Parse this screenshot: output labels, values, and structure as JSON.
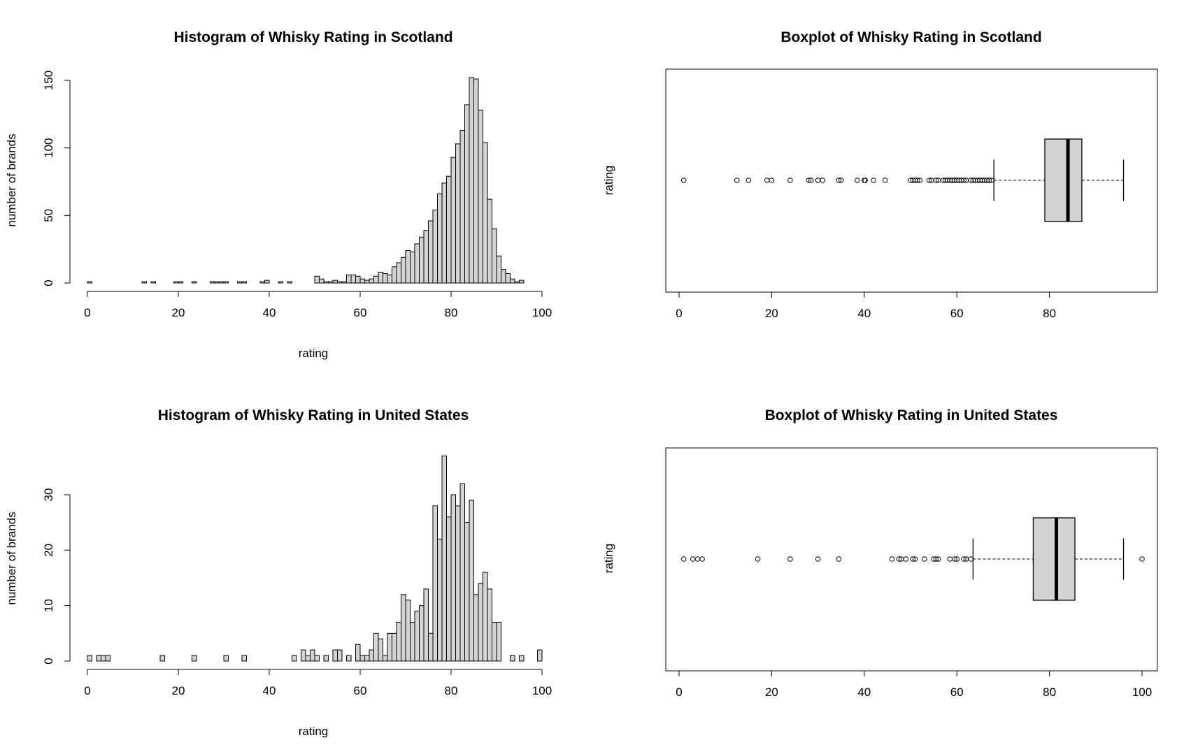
{
  "chart_data": [
    {
      "type": "bar",
      "chart": "histogram",
      "title": "Histogram of Whisky Rating in Scotland",
      "xlabel": "rating",
      "ylabel": "number of brands",
      "xlim": [
        0,
        100
      ],
      "ylim": [
        0,
        150
      ],
      "xticks": [
        "0",
        "20",
        "40",
        "60",
        "80",
        "100"
      ],
      "yticks": [
        "0",
        "50",
        "100",
        "150"
      ],
      "bin_width": 1,
      "bins_start": [
        0,
        1,
        2,
        3,
        4,
        5,
        6,
        7,
        8,
        9,
        10,
        11,
        12,
        13,
        14,
        15,
        16,
        17,
        18,
        19,
        20,
        21,
        22,
        23,
        24,
        25,
        26,
        27,
        28,
        29,
        30,
        31,
        32,
        33,
        34,
        35,
        36,
        37,
        38,
        39,
        40,
        41,
        42,
        43,
        44,
        45,
        46,
        47,
        48,
        49,
        50,
        51,
        52,
        53,
        54,
        55,
        56,
        57,
        58,
        59,
        60,
        61,
        62,
        63,
        64,
        65,
        66,
        67,
        68,
        69,
        70,
        71,
        72,
        73,
        74,
        75,
        76,
        77,
        78,
        79,
        80,
        81,
        82,
        83,
        84,
        85,
        86,
        87,
        88,
        89,
        90,
        91,
        92,
        93,
        94,
        95,
        96,
        97,
        98,
        99
      ],
      "values": [
        1,
        0,
        0,
        0,
        0,
        0,
        0,
        0,
        0,
        0,
        0,
        0,
        1,
        0,
        1,
        0,
        0,
        0,
        0,
        1,
        1,
        0,
        0,
        1,
        0,
        0,
        0,
        1,
        1,
        1,
        1,
        0,
        0,
        1,
        1,
        0,
        0,
        0,
        1,
        2,
        0,
        0,
        1,
        0,
        1,
        0,
        0,
        0,
        0,
        0,
        5,
        3,
        1,
        1,
        2,
        1,
        1,
        6,
        6,
        5,
        3,
        2,
        3,
        5,
        8,
        7,
        6,
        12,
        15,
        19,
        24,
        23,
        29,
        34,
        39,
        46,
        54,
        66,
        74,
        79,
        93,
        103,
        113,
        132,
        152,
        151,
        128,
        104,
        62,
        40,
        20,
        10,
        7,
        3,
        1,
        2,
        0,
        0,
        0,
        0
      ]
    },
    {
      "type": "boxplot",
      "title": "Boxplot of Whisky Rating in Scotland",
      "ylabel": "rating",
      "xlim": [
        0,
        100
      ],
      "xticks": [
        "0",
        "20",
        "40",
        "60",
        "80"
      ],
      "whisker_low": 68,
      "q1": 79,
      "median": 84,
      "q3": 87,
      "whisker_high": 96,
      "outliers": [
        1,
        12.5,
        15,
        19,
        20,
        24,
        28,
        28.5,
        30,
        31,
        34.5,
        35,
        38.5,
        40,
        40.2,
        42,
        44.5,
        50,
        50.5,
        51,
        51.5,
        52,
        54,
        54.5,
        55.5,
        56,
        57,
        57.5,
        58,
        58.5,
        59,
        59.5,
        60,
        60.5,
        61,
        61.5,
        62,
        63,
        63.5,
        64,
        64.5,
        65,
        65.5,
        66,
        66.5,
        67,
        67.5
      ]
    },
    {
      "type": "bar",
      "chart": "histogram",
      "title": "Histogram of Whisky Rating in United States",
      "xlabel": "rating",
      "ylabel": "number of brands",
      "xlim": [
        0,
        100
      ],
      "ylim": [
        0,
        37
      ],
      "xticks": [
        "0",
        "20",
        "40",
        "60",
        "80",
        "100"
      ],
      "yticks": [
        "0",
        "10",
        "20",
        "30"
      ],
      "bin_width": 1,
      "bins_start": [
        0,
        1,
        2,
        3,
        4,
        5,
        6,
        7,
        8,
        9,
        10,
        11,
        12,
        13,
        14,
        15,
        16,
        17,
        18,
        19,
        20,
        21,
        22,
        23,
        24,
        25,
        26,
        27,
        28,
        29,
        30,
        31,
        32,
        33,
        34,
        35,
        36,
        37,
        38,
        39,
        40,
        41,
        42,
        43,
        44,
        45,
        46,
        47,
        48,
        49,
        50,
        51,
        52,
        53,
        54,
        55,
        56,
        57,
        58,
        59,
        60,
        61,
        62,
        63,
        64,
        65,
        66,
        67,
        68,
        69,
        70,
        71,
        72,
        73,
        74,
        75,
        76,
        77,
        78,
        79,
        80,
        81,
        82,
        83,
        84,
        85,
        86,
        87,
        88,
        89,
        90,
        91,
        92,
        93,
        94,
        95,
        96,
        97,
        98,
        99
      ],
      "values": [
        1,
        0,
        1,
        1,
        1,
        0,
        0,
        0,
        0,
        0,
        0,
        0,
        0,
        0,
        0,
        0,
        1,
        0,
        0,
        0,
        0,
        0,
        0,
        1,
        0,
        0,
        0,
        0,
        0,
        0,
        1,
        0,
        0,
        0,
        1,
        0,
        0,
        0,
        0,
        0,
        0,
        0,
        0,
        0,
        0,
        1,
        0,
        2,
        1,
        2,
        1,
        0,
        1,
        0,
        2,
        2,
        0,
        1,
        0,
        3,
        1,
        1,
        2,
        5,
        4,
        1,
        5,
        5,
        7,
        12,
        11,
        7,
        9,
        10,
        13,
        5,
        28,
        22,
        37,
        26,
        30,
        28,
        32,
        25,
        29,
        12,
        14,
        16,
        13,
        7,
        7,
        0,
        0,
        1,
        0,
        1,
        0,
        0,
        0,
        2
      ]
    },
    {
      "type": "boxplot",
      "title": "Boxplot of Whisky Rating in United States",
      "ylabel": "rating",
      "xlim": [
        0,
        100
      ],
      "xticks": [
        "0",
        "20",
        "40",
        "60",
        "80",
        "100"
      ],
      "whisker_low": 63.5,
      "q1": 76.5,
      "median": 81.5,
      "q3": 85.5,
      "whisker_high": 96,
      "outliers": [
        1,
        3,
        4,
        5,
        17,
        24,
        30,
        34.5,
        46,
        47.5,
        48,
        49,
        50.5,
        51,
        53,
        55,
        55.5,
        56,
        58.5,
        59.5,
        60,
        61.5,
        62,
        63,
        100
      ]
    }
  ]
}
